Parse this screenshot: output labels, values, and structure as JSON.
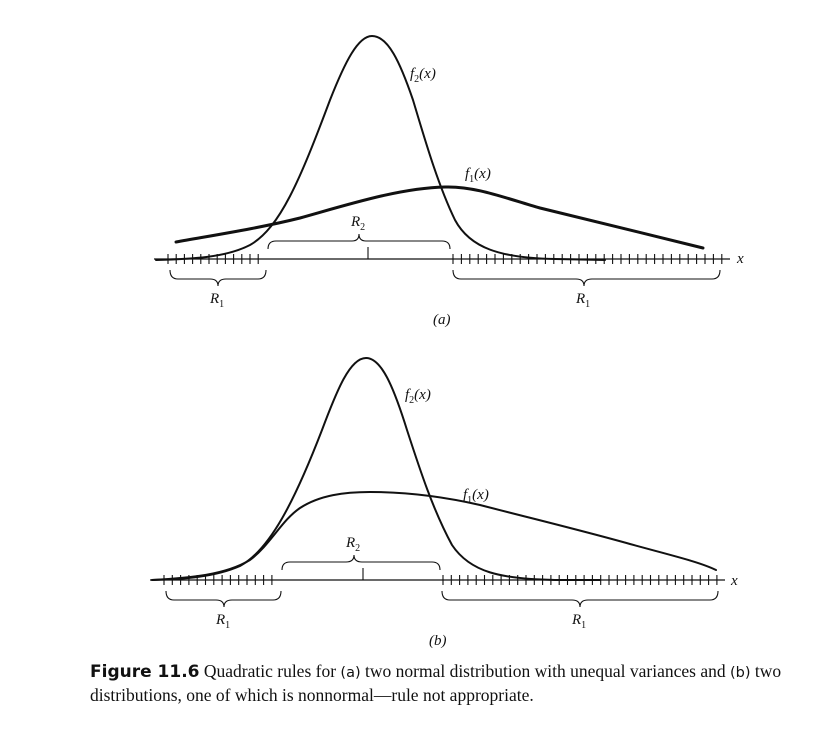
{
  "figure": {
    "label": "Figure 11.6",
    "caption_parts": {
      "t1": "Quadratic rules for ",
      "a": "(a)",
      "t2": " two normal distribution with unequal variances and ",
      "b": "(b)",
      "t3": " two distributions, one of which is nonnormal—rule not appropriate."
    }
  },
  "panels": [
    {
      "id": "a",
      "label": "(a)",
      "axis_label": "x",
      "f2_label": {
        "f": "f",
        "sub": "2",
        "arg": "(x)"
      },
      "f1_label": {
        "f": "f",
        "sub": "1",
        "arg": "(x)"
      },
      "regions": [
        {
          "name": "R",
          "sub": "1"
        },
        {
          "name": "R",
          "sub": "2"
        },
        {
          "name": "R",
          "sub": "1"
        }
      ]
    },
    {
      "id": "b",
      "label": "(b)",
      "axis_label": "x",
      "f2_label": {
        "f": "f",
        "sub": "2",
        "arg": "(x)"
      },
      "f1_label": {
        "f": "f",
        "sub": "1",
        "arg": "(x)"
      },
      "regions": [
        {
          "name": "R",
          "sub": "1"
        },
        {
          "name": "R",
          "sub": "2"
        },
        {
          "name": "R",
          "sub": "1"
        }
      ]
    }
  ]
}
